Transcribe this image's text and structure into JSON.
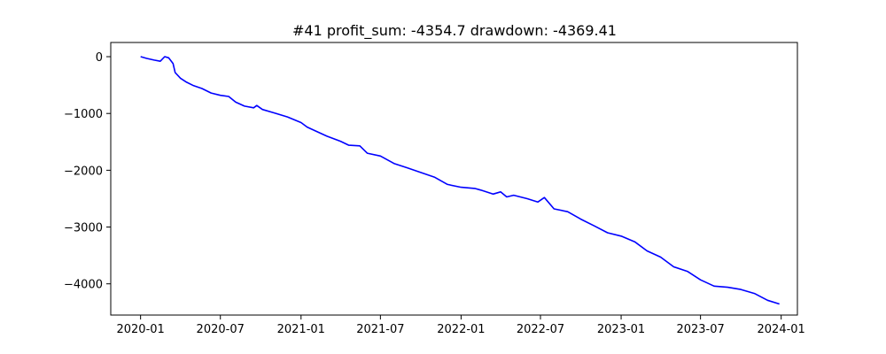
{
  "chart_data": {
    "type": "line",
    "title": "#41   profit_sum: -4354.7 drawdown: -4369.41",
    "xlabel": "",
    "ylabel": "",
    "x_range": [
      "2019-10-25",
      "2024-02-07"
    ],
    "ylim": [
      -4550,
      250
    ],
    "x_ticks": [
      {
        "date": "2020-01-01",
        "label": "2020-01"
      },
      {
        "date": "2020-07-01",
        "label": "2020-07"
      },
      {
        "date": "2021-01-01",
        "label": "2021-01"
      },
      {
        "date": "2021-07-01",
        "label": "2021-07"
      },
      {
        "date": "2022-01-01",
        "label": "2022-01"
      },
      {
        "date": "2022-07-01",
        "label": "2022-07"
      },
      {
        "date": "2023-01-01",
        "label": "2023-01"
      },
      {
        "date": "2023-07-01",
        "label": "2023-07"
      },
      {
        "date": "2024-01-01",
        "label": "2024-01"
      }
    ],
    "y_ticks": [
      {
        "value": 0,
        "label": "0"
      },
      {
        "value": -1000,
        "label": "−1000"
      },
      {
        "value": -2000,
        "label": "−2000"
      },
      {
        "value": -3000,
        "label": "−3000"
      },
      {
        "value": -4000,
        "label": "−4000"
      }
    ],
    "grid": false,
    "series": [
      {
        "color": "#0000ff",
        "points": [
          [
            "2020-01-01",
            0
          ],
          [
            "2020-01-15",
            -30
          ],
          [
            "2020-02-01",
            -60
          ],
          [
            "2020-02-15",
            -80
          ],
          [
            "2020-02-25",
            0
          ],
          [
            "2020-03-05",
            -20
          ],
          [
            "2020-03-15",
            -120
          ],
          [
            "2020-03-20",
            -280
          ],
          [
            "2020-04-01",
            -380
          ],
          [
            "2020-04-15",
            -450
          ],
          [
            "2020-05-01",
            -510
          ],
          [
            "2020-05-20",
            -560
          ],
          [
            "2020-06-10",
            -640
          ],
          [
            "2020-07-01",
            -680
          ],
          [
            "2020-07-20",
            -700
          ],
          [
            "2020-08-05",
            -800
          ],
          [
            "2020-08-25",
            -870
          ],
          [
            "2020-09-15",
            -900
          ],
          [
            "2020-09-22",
            -860
          ],
          [
            "2020-10-05",
            -930
          ],
          [
            "2020-11-01",
            -990
          ],
          [
            "2020-12-01",
            -1060
          ],
          [
            "2021-01-01",
            -1160
          ],
          [
            "2021-01-15",
            -1240
          ],
          [
            "2021-02-01",
            -1300
          ],
          [
            "2021-03-01",
            -1400
          ],
          [
            "2021-04-01",
            -1490
          ],
          [
            "2021-04-20",
            -1560
          ],
          [
            "2021-05-15",
            -1570
          ],
          [
            "2021-06-01",
            -1700
          ],
          [
            "2021-07-01",
            -1750
          ],
          [
            "2021-08-01",
            -1880
          ],
          [
            "2021-09-01",
            -1960
          ],
          [
            "2021-10-01",
            -2040
          ],
          [
            "2021-11-01",
            -2120
          ],
          [
            "2021-12-01",
            -2250
          ],
          [
            "2022-01-01",
            -2300
          ],
          [
            "2022-02-01",
            -2320
          ],
          [
            "2022-02-15",
            -2350
          ],
          [
            "2022-03-15",
            -2420
          ],
          [
            "2022-04-01",
            -2380
          ],
          [
            "2022-04-15",
            -2470
          ],
          [
            "2022-05-01",
            -2440
          ],
          [
            "2022-06-01",
            -2500
          ],
          [
            "2022-06-25",
            -2560
          ],
          [
            "2022-07-10",
            -2480
          ],
          [
            "2022-08-01",
            -2680
          ],
          [
            "2022-09-01",
            -2730
          ],
          [
            "2022-10-01",
            -2860
          ],
          [
            "2022-11-01",
            -2980
          ],
          [
            "2022-12-01",
            -3100
          ],
          [
            "2023-01-01",
            -3160
          ],
          [
            "2023-02-01",
            -3260
          ],
          [
            "2023-03-01",
            -3420
          ],
          [
            "2023-04-01",
            -3530
          ],
          [
            "2023-05-01",
            -3700
          ],
          [
            "2023-06-01",
            -3780
          ],
          [
            "2023-07-01",
            -3930
          ],
          [
            "2023-08-01",
            -4040
          ],
          [
            "2023-09-01",
            -4060
          ],
          [
            "2023-10-01",
            -4100
          ],
          [
            "2023-11-01",
            -4170
          ],
          [
            "2023-12-01",
            -4290
          ],
          [
            "2023-12-28",
            -4355
          ]
        ]
      }
    ]
  }
}
